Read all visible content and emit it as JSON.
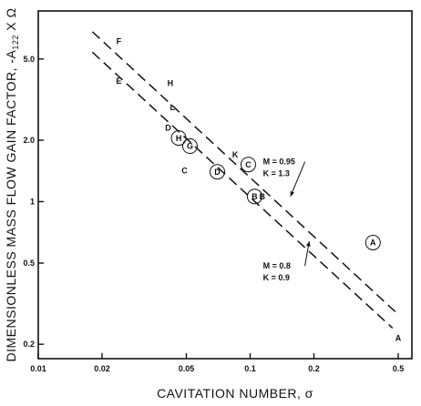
{
  "chart_data": {
    "type": "scatter",
    "title": "",
    "xlabel": "CAVITATION   NUMBER, σ",
    "ylabel": "DIMENSIONLESS MASS FLOW GAIN FACTOR, -A",
    "ylabel_sub": "122",
    "ylabel_tail": " X Ω",
    "x_scale": "log",
    "y_scale": "log",
    "xlim": [
      0.01,
      0.58
    ],
    "ylim": [
      0.17,
      8.6
    ],
    "x_ticks": [
      {
        "value": 0.01,
        "label": "0.01"
      },
      {
        "value": 0.02,
        "label": "0.02"
      },
      {
        "value": 0.05,
        "label": "0.05"
      },
      {
        "value": 0.1,
        "label": "0.1"
      },
      {
        "value": 0.2,
        "label": "0.2"
      },
      {
        "value": 0.5,
        "label": "0.5"
      }
    ],
    "y_ticks": [
      {
        "value": 0.2,
        "label": "0.2"
      },
      {
        "value": 0.5,
        "label": "0.5"
      },
      {
        "value": 1,
        "label": "1"
      },
      {
        "value": 2,
        "label": "2.0"
      },
      {
        "value": 5,
        "label": "5.0"
      }
    ],
    "grid": false,
    "points": [
      {
        "x": 0.024,
        "y": 6.1,
        "label": "F",
        "circled": false
      },
      {
        "x": 0.024,
        "y": 3.9,
        "label": "E",
        "circled": false
      },
      {
        "x": 0.042,
        "y": 3.8,
        "label": "H",
        "circled": false
      },
      {
        "x": 0.043,
        "y": 2.9,
        "label": "L",
        "circled": false
      },
      {
        "x": 0.041,
        "y": 2.3,
        "label": "D",
        "circled": false
      },
      {
        "x": 0.046,
        "y": 2.05,
        "label": "H",
        "circled": true
      },
      {
        "x": 0.052,
        "y": 1.87,
        "label": "G",
        "circled": true
      },
      {
        "x": 0.049,
        "y": 1.42,
        "label": "C",
        "circled": false
      },
      {
        "x": 0.085,
        "y": 1.7,
        "label": "K",
        "circled": false
      },
      {
        "x": 0.098,
        "y": 1.52,
        "label": "C",
        "circled": true
      },
      {
        "x": 0.07,
        "y": 1.4,
        "label": "D",
        "circled": true
      },
      {
        "x": 0.105,
        "y": 1.06,
        "label": "B",
        "circled": true
      },
      {
        "x": 0.114,
        "y": 1.06,
        "label": "B",
        "circled": false
      },
      {
        "x": 0.38,
        "y": 0.63,
        "label": "A",
        "circled": true
      },
      {
        "x": 0.5,
        "y": 0.215,
        "label": "A",
        "circled": false
      }
    ],
    "lines": [
      {
        "x": [
          0.018,
          0.5
        ],
        "y": [
          6.8,
          0.28
        ],
        "style": "dashed",
        "label": [
          "M = 0.95",
          "K = 1.3"
        ]
      },
      {
        "x": [
          0.018,
          0.47
        ],
        "y": [
          5.4,
          0.24
        ],
        "style": "dashed",
        "label": [
          "M = 0.8",
          "K = 0.9"
        ]
      }
    ]
  }
}
